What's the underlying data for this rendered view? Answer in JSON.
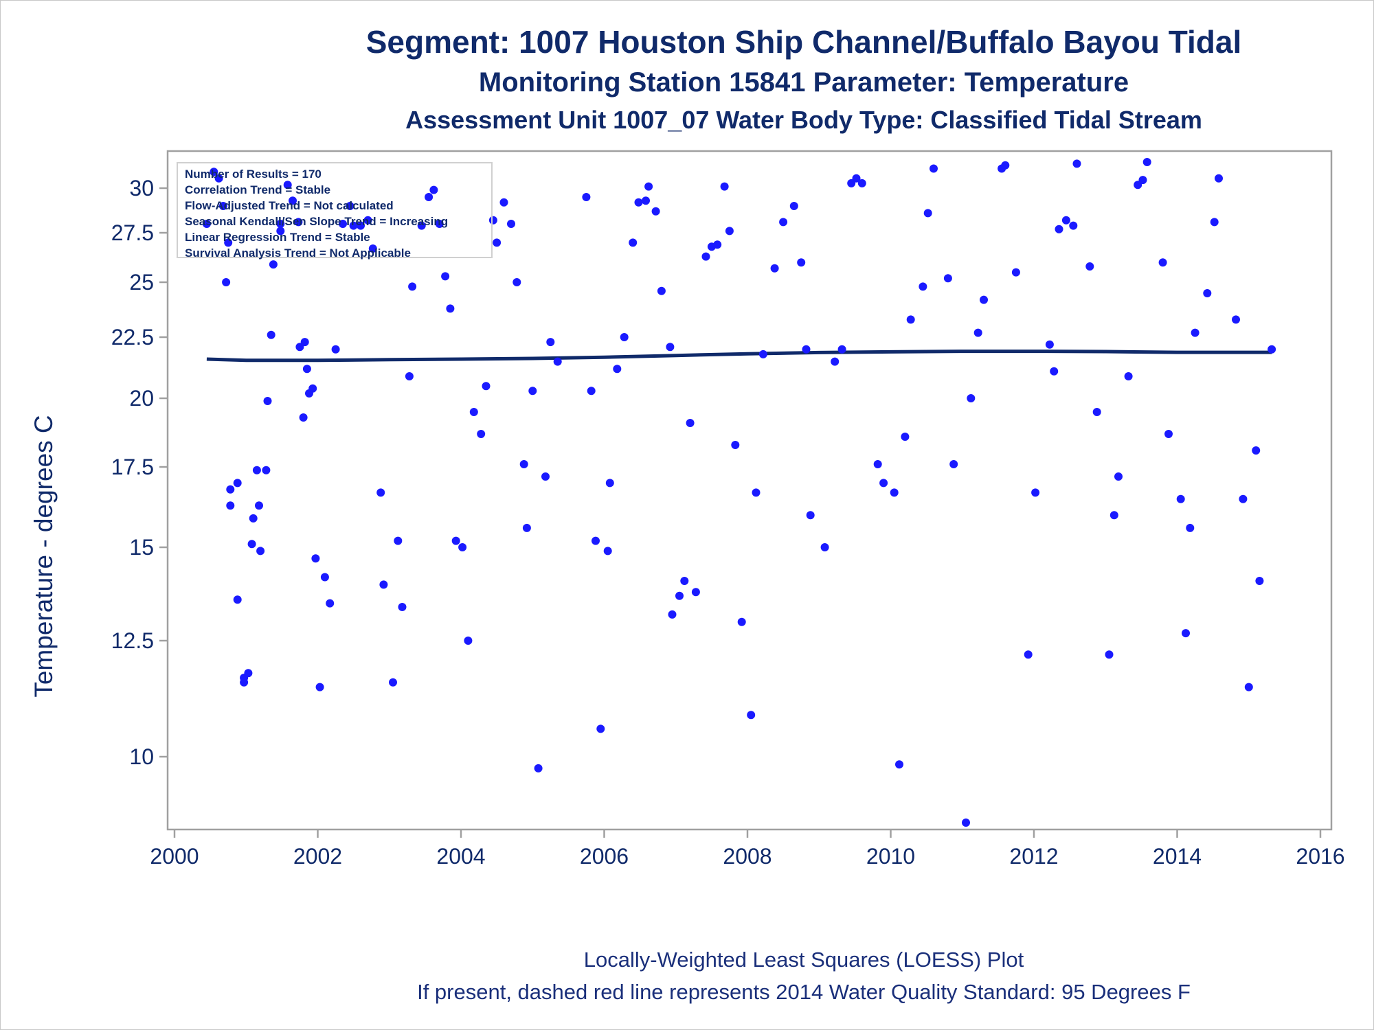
{
  "titles": {
    "line1": "Segment: 1007  Houston Ship Channel/Buffalo Bayou Tidal",
    "line2": "Monitoring Station 15841 Parameter: Temperature",
    "line3": "Assessment Unit 1007_07   Water Body Type: Classified Tidal Stream"
  },
  "footer": {
    "line1": "Locally-Weighted Least Squares (LOESS) Plot",
    "line2": "If present, dashed red line represents 2014 Water Quality Standard: 95   Degrees F"
  },
  "legend": [
    "Number of Results = 170",
    "Correlation Trend = Stable",
    "Flow-Adjusted Trend = Not calculated",
    "Seasonal Kendall/Sen Slope Trend = Increasing",
    "Linear Regression Trend = Stable",
    "Survival Analysis Trend = Not Applicable"
  ],
  "chart_data": {
    "type": "scatter",
    "ylabel": "Temperature - degrees C",
    "xlabel": "",
    "x_ticks": [
      "2000",
      "2002",
      "2004",
      "2006",
      "2008",
      "2010",
      "2012",
      "2014",
      "2016"
    ],
    "y_ticks": [
      "10",
      "12.5",
      "15",
      "17.5",
      "20",
      "22.5",
      "25",
      "27.5",
      "30"
    ],
    "xlim": [
      2000,
      2016
    ],
    "ylim_display": [
      8.3,
      31.2
    ],
    "y_scale": "nonlinear",
    "colors": {
      "points": "#1a1aff",
      "loess": "#102a6a",
      "axis": "#a0a0a0",
      "text": "#102a6a"
    },
    "points": [
      [
        2000.45,
        28.0
      ],
      [
        2000.55,
        31.0
      ],
      [
        2000.62,
        30.6
      ],
      [
        2000.68,
        29.0
      ],
      [
        2000.72,
        25.0
      ],
      [
        2000.75,
        27.0
      ],
      [
        2000.78,
        16.8
      ],
      [
        2000.78,
        16.3
      ],
      [
        2000.88,
        17.0
      ],
      [
        2000.88,
        13.6
      ],
      [
        2000.97,
        11.7
      ],
      [
        2000.97,
        11.6
      ],
      [
        2001.03,
        11.8
      ],
      [
        2001.08,
        15.1
      ],
      [
        2001.1,
        15.9
      ],
      [
        2001.15,
        17.4
      ],
      [
        2001.18,
        16.3
      ],
      [
        2001.2,
        14.9
      ],
      [
        2001.28,
        17.4
      ],
      [
        2001.3,
        19.9
      ],
      [
        2001.35,
        22.6
      ],
      [
        2001.38,
        25.9
      ],
      [
        2001.48,
        28.0
      ],
      [
        2001.48,
        27.6
      ],
      [
        2001.58,
        30.2
      ],
      [
        2001.65,
        29.3
      ],
      [
        2001.73,
        28.1
      ],
      [
        2001.75,
        22.1
      ],
      [
        2001.8,
        19.3
      ],
      [
        2001.82,
        22.3
      ],
      [
        2001.85,
        21.2
      ],
      [
        2001.88,
        20.2
      ],
      [
        2001.93,
        20.4
      ],
      [
        2001.97,
        14.7
      ],
      [
        2002.03,
        11.5
      ],
      [
        2002.1,
        14.2
      ],
      [
        2002.17,
        13.5
      ],
      [
        2002.25,
        22.0
      ],
      [
        2002.35,
        28.0
      ],
      [
        2002.45,
        29.0
      ],
      [
        2002.5,
        27.9
      ],
      [
        2002.6,
        27.9
      ],
      [
        2002.7,
        28.2
      ],
      [
        2002.77,
        26.7
      ],
      [
        2002.88,
        16.7
      ],
      [
        2002.92,
        14.0
      ],
      [
        2003.05,
        11.6
      ],
      [
        2003.12,
        15.2
      ],
      [
        2003.18,
        13.4
      ],
      [
        2003.28,
        20.9
      ],
      [
        2003.32,
        24.8
      ],
      [
        2003.45,
        27.9
      ],
      [
        2003.55,
        29.5
      ],
      [
        2003.62,
        29.9
      ],
      [
        2003.7,
        28.0
      ],
      [
        2003.78,
        25.3
      ],
      [
        2003.85,
        23.8
      ],
      [
        2003.93,
        15.2
      ],
      [
        2004.02,
        15.0
      ],
      [
        2004.1,
        12.5
      ],
      [
        2004.18,
        19.5
      ],
      [
        2004.28,
        18.7
      ],
      [
        2004.35,
        20.5
      ],
      [
        2004.45,
        28.2
      ],
      [
        2004.5,
        27.0
      ],
      [
        2004.6,
        29.2
      ],
      [
        2004.7,
        28.0
      ],
      [
        2004.78,
        25.0
      ],
      [
        2004.88,
        17.6
      ],
      [
        2004.92,
        15.6
      ],
      [
        2005.0,
        20.3
      ],
      [
        2005.08,
        9.7
      ],
      [
        2005.18,
        17.2
      ],
      [
        2005.25,
        22.3
      ],
      [
        2005.35,
        21.5
      ],
      [
        2005.75,
        29.5
      ],
      [
        2005.82,
        20.3
      ],
      [
        2005.88,
        15.2
      ],
      [
        2005.95,
        10.6
      ],
      [
        2006.05,
        14.9
      ],
      [
        2006.08,
        17.0
      ],
      [
        2006.18,
        21.2
      ],
      [
        2006.28,
        22.5
      ],
      [
        2006.4,
        27.0
      ],
      [
        2006.48,
        29.2
      ],
      [
        2006.58,
        29.3
      ],
      [
        2006.62,
        30.1
      ],
      [
        2006.72,
        28.7
      ],
      [
        2006.8,
        24.6
      ],
      [
        2006.92,
        22.1
      ],
      [
        2006.95,
        13.2
      ],
      [
        2007.05,
        13.7
      ],
      [
        2007.12,
        14.1
      ],
      [
        2007.2,
        19.1
      ],
      [
        2007.28,
        13.8
      ],
      [
        2007.42,
        26.3
      ],
      [
        2007.5,
        26.8
      ],
      [
        2007.58,
        26.9
      ],
      [
        2007.68,
        30.1
      ],
      [
        2007.75,
        27.6
      ],
      [
        2007.83,
        18.3
      ],
      [
        2007.92,
        13.0
      ],
      [
        2008.05,
        10.9
      ],
      [
        2008.12,
        16.7
      ],
      [
        2008.22,
        21.8
      ],
      [
        2008.38,
        25.7
      ],
      [
        2008.5,
        28.1
      ],
      [
        2008.65,
        29.0
      ],
      [
        2008.75,
        26.0
      ],
      [
        2008.82,
        22.0
      ],
      [
        2008.88,
        16.0
      ],
      [
        2009.08,
        15.0
      ],
      [
        2009.22,
        21.5
      ],
      [
        2009.32,
        22.0
      ],
      [
        2009.45,
        30.3
      ],
      [
        2009.52,
        30.6
      ],
      [
        2009.6,
        30.3
      ],
      [
        2009.82,
        17.6
      ],
      [
        2009.9,
        17.0
      ],
      [
        2010.05,
        16.7
      ],
      [
        2010.12,
        9.8
      ],
      [
        2010.2,
        18.6
      ],
      [
        2010.28,
        23.3
      ],
      [
        2010.45,
        24.8
      ],
      [
        2010.52,
        28.6
      ],
      [
        2010.6,
        31.2
      ],
      [
        2010.8,
        25.2
      ],
      [
        2010.88,
        17.6
      ],
      [
        2011.05,
        8.3
      ],
      [
        2011.12,
        20.0
      ],
      [
        2011.22,
        22.7
      ],
      [
        2011.3,
        24.2
      ],
      [
        2011.55,
        31.2
      ],
      [
        2011.6,
        31.4
      ],
      [
        2011.75,
        25.5
      ],
      [
        2011.92,
        12.2
      ],
      [
        2012.02,
        16.7
      ],
      [
        2012.22,
        22.2
      ],
      [
        2012.28,
        21.1
      ],
      [
        2012.35,
        27.7
      ],
      [
        2012.45,
        28.2
      ],
      [
        2012.55,
        27.9
      ],
      [
        2012.6,
        31.5
      ],
      [
        2012.78,
        25.8
      ],
      [
        2012.88,
        19.5
      ],
      [
        2013.05,
        12.2
      ],
      [
        2013.12,
        16.0
      ],
      [
        2013.18,
        17.2
      ],
      [
        2013.32,
        20.9
      ],
      [
        2013.45,
        30.2
      ],
      [
        2013.52,
        30.5
      ],
      [
        2013.58,
        31.6
      ],
      [
        2013.8,
        26.0
      ],
      [
        2013.88,
        18.7
      ],
      [
        2014.05,
        16.5
      ],
      [
        2014.12,
        12.7
      ],
      [
        2014.18,
        15.6
      ],
      [
        2014.25,
        22.7
      ],
      [
        2014.42,
        24.5
      ],
      [
        2014.52,
        28.1
      ],
      [
        2014.58,
        30.6
      ],
      [
        2014.82,
        23.3
      ],
      [
        2014.92,
        16.5
      ],
      [
        2015.0,
        11.5
      ],
      [
        2015.1,
        18.1
      ],
      [
        2015.15,
        14.1
      ],
      [
        2015.32,
        22.0
      ]
    ],
    "loess": [
      [
        2000.45,
        21.6
      ],
      [
        2001.0,
        21.55
      ],
      [
        2002.0,
        21.55
      ],
      [
        2003.0,
        21.58
      ],
      [
        2004.0,
        21.6
      ],
      [
        2005.0,
        21.63
      ],
      [
        2006.0,
        21.68
      ],
      [
        2007.0,
        21.75
      ],
      [
        2008.0,
        21.82
      ],
      [
        2009.0,
        21.87
      ],
      [
        2010.0,
        21.9
      ],
      [
        2011.0,
        21.92
      ],
      [
        2012.0,
        21.92
      ],
      [
        2013.0,
        21.91
      ],
      [
        2014.0,
        21.88
      ],
      [
        2015.32,
        21.88
      ]
    ]
  }
}
